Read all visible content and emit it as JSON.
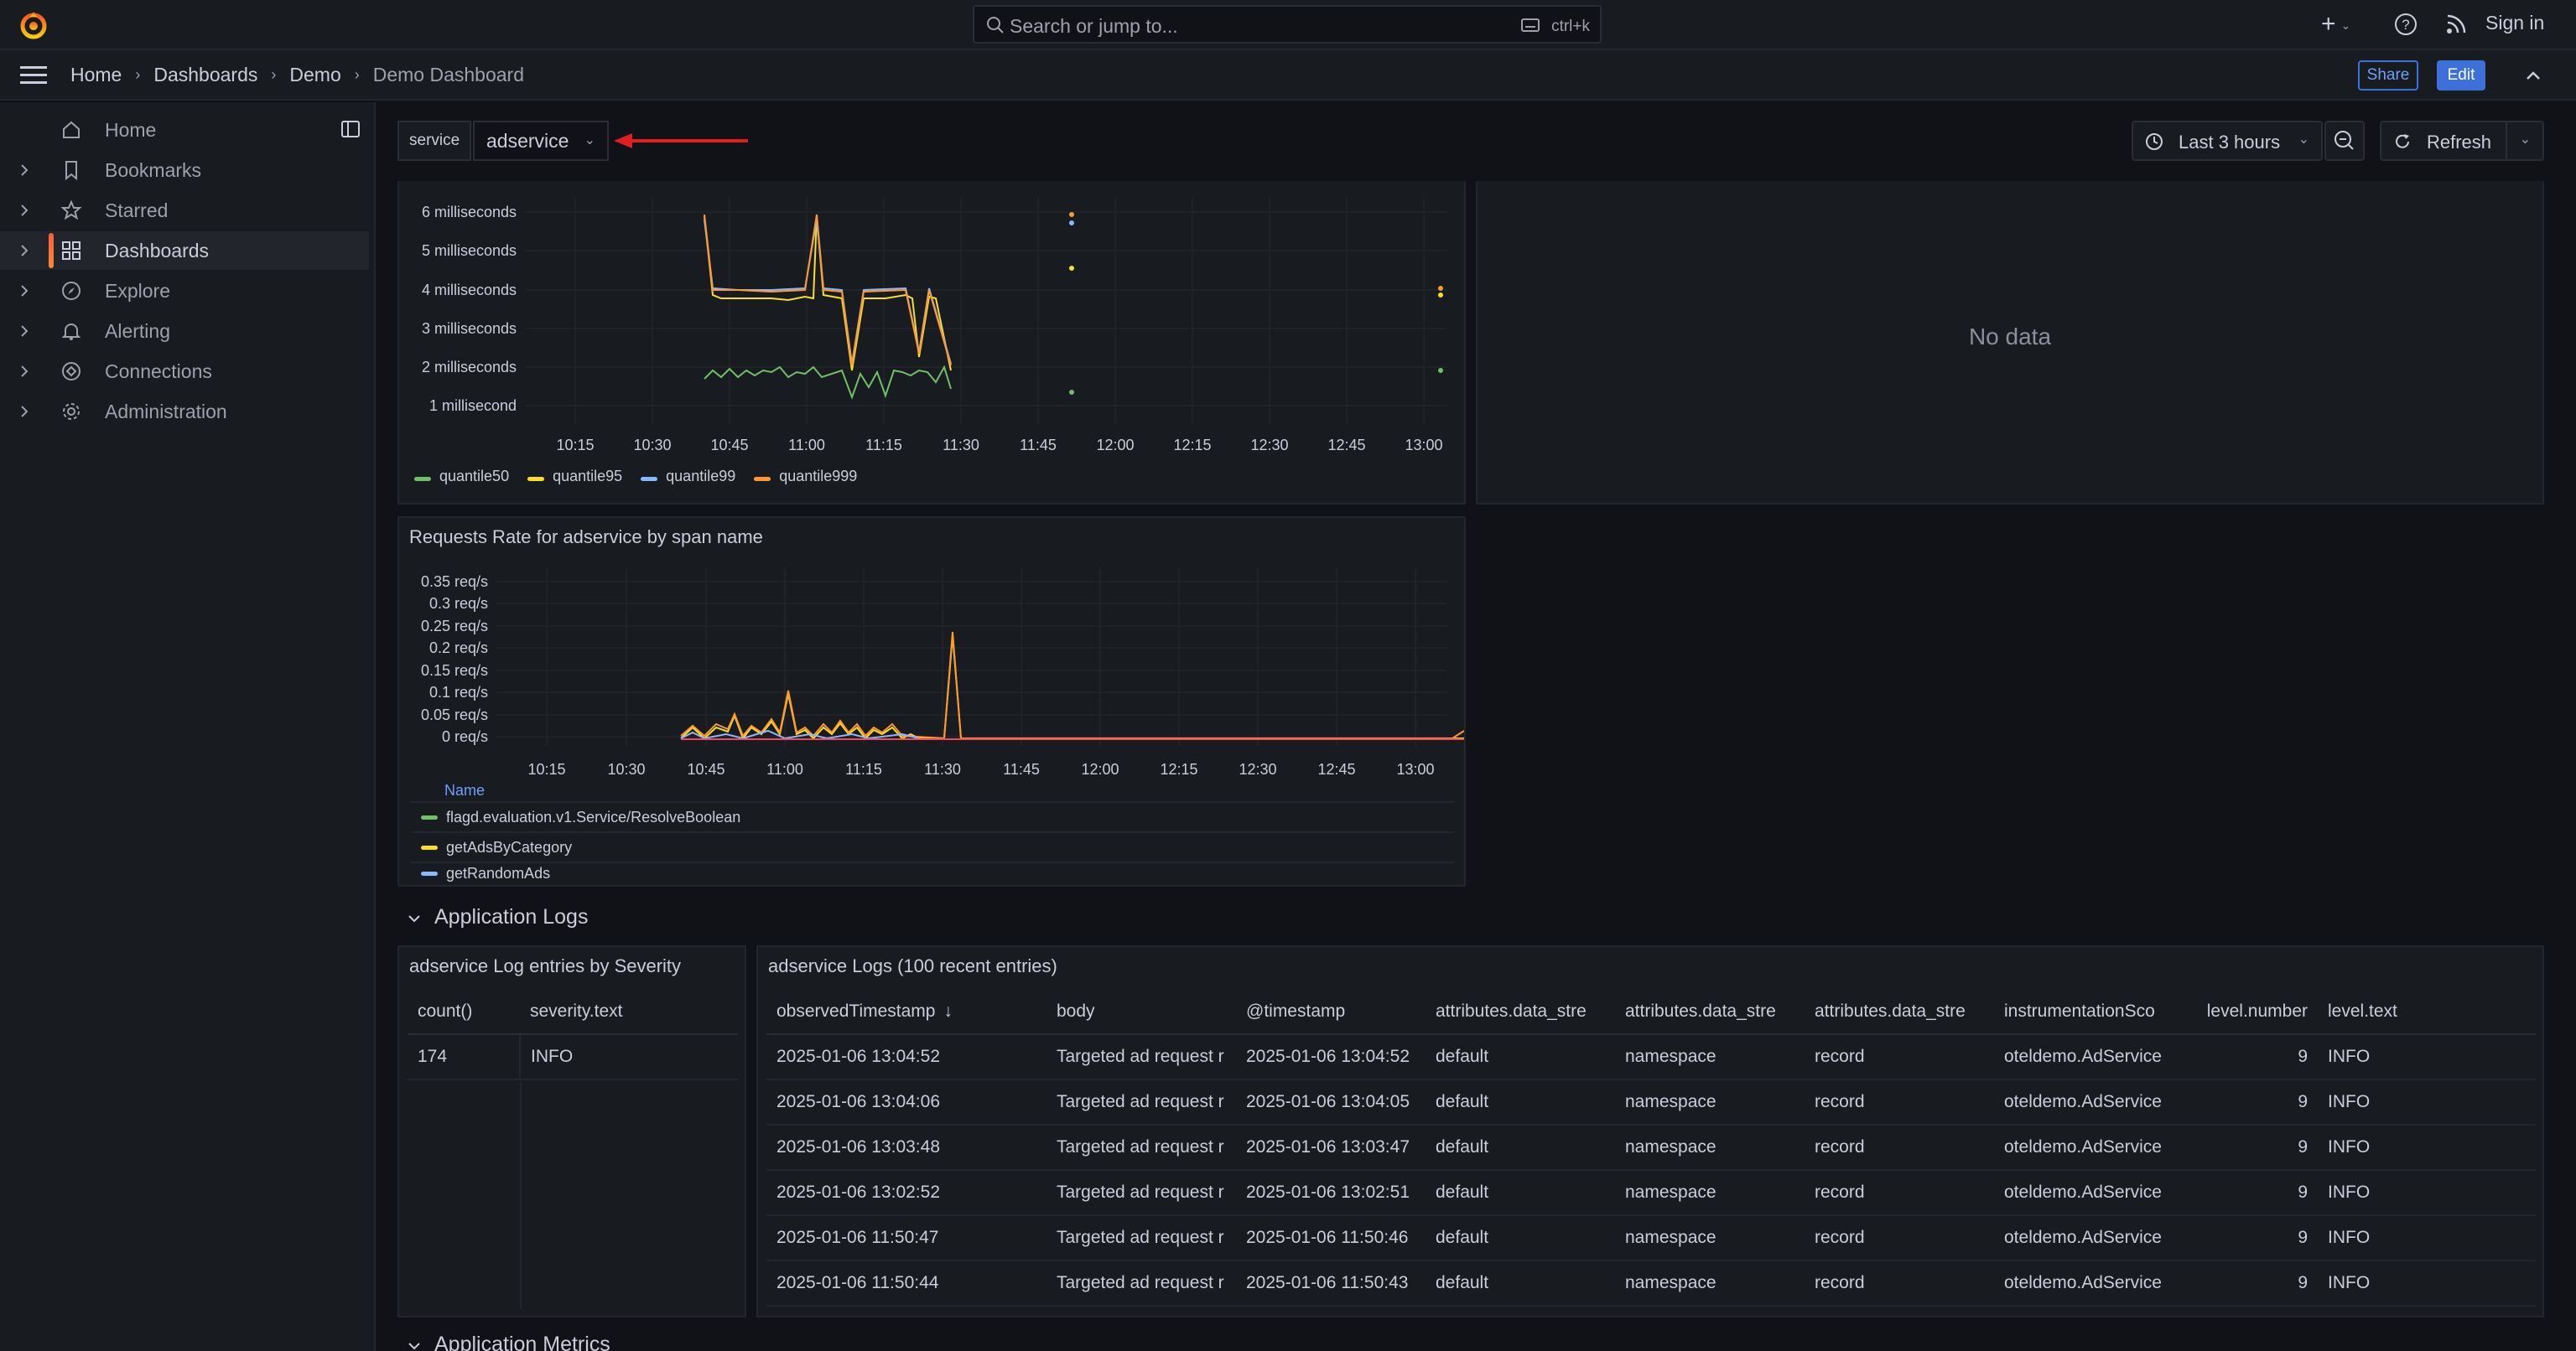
{
  "topbar": {
    "search_placeholder": "Search or jump to...",
    "search_shortcut": "ctrl+k",
    "plus_label": "+",
    "signin_label": "Sign in"
  },
  "breadcrumb": [
    "Home",
    "Dashboards",
    "Demo",
    "Demo Dashboard"
  ],
  "toolbar": {
    "share_label": "Share",
    "edit_label": "Edit"
  },
  "sidebar": {
    "items": [
      {
        "label": "Home",
        "icon": "home-icon",
        "expandable": false,
        "active": false
      },
      {
        "label": "Bookmarks",
        "icon": "bookmark-icon",
        "expandable": true,
        "active": false
      },
      {
        "label": "Starred",
        "icon": "star-icon",
        "expandable": true,
        "active": false
      },
      {
        "label": "Dashboards",
        "icon": "dashboards-grid-icon",
        "expandable": true,
        "active": true
      },
      {
        "label": "Explore",
        "icon": "compass-icon",
        "expandable": true,
        "active": false
      },
      {
        "label": "Alerting",
        "icon": "bell-icon",
        "expandable": true,
        "active": false
      },
      {
        "label": "Connections",
        "icon": "connections-icon",
        "expandable": true,
        "active": false
      },
      {
        "label": "Administration",
        "icon": "gear-icon",
        "expandable": true,
        "active": false
      }
    ]
  },
  "variables": {
    "service_label": "service",
    "service_value": "adservice"
  },
  "timepicker": {
    "range_label": "Last 3 hours",
    "refresh_label": "Refresh"
  },
  "colors": {
    "green": "#73bf69",
    "yellow": "#fade2a",
    "blue": "#8ab8ff",
    "orange": "#ff9830",
    "red": "#f2495c",
    "accent": "#3d71d9"
  },
  "panels": {
    "latency": {
      "y_ticks": [
        "6 milliseconds",
        "5 milliseconds",
        "4 milliseconds",
        "3 milliseconds",
        "2 milliseconds",
        "1 millisecond"
      ],
      "x_ticks": [
        "10:15",
        "10:30",
        "10:45",
        "11:00",
        "11:15",
        "11:30",
        "11:45",
        "12:00",
        "12:15",
        "12:30",
        "12:45",
        "13:00"
      ],
      "legend": [
        "quantile50",
        "quantile95",
        "quantile99",
        "quantile999"
      ]
    },
    "nodata": {
      "message": "No data"
    },
    "rate": {
      "title": "Requests Rate for adservice by span name",
      "y_ticks": [
        "0.35 req/s",
        "0.3 req/s",
        "0.25 req/s",
        "0.2 req/s",
        "0.15 req/s",
        "0.1 req/s",
        "0.05 req/s",
        "0 req/s"
      ],
      "x_ticks": [
        "10:15",
        "10:30",
        "10:45",
        "11:00",
        "11:15",
        "11:30",
        "11:45",
        "12:00",
        "12:15",
        "12:30",
        "12:45",
        "13:00"
      ],
      "legend_header": "Name",
      "legend": [
        "flagd.evaluation.v1.Service/ResolveBoolean",
        "getAdsByCategory",
        "getRandomAds"
      ]
    }
  },
  "rows": {
    "logs_title": "Application Logs",
    "metrics_title": "Application Metrics"
  },
  "severity_table": {
    "title": "adservice Log entries by Severity",
    "columns": [
      "count()",
      "severity.text"
    ],
    "rows": [
      [
        "174",
        "INFO"
      ]
    ]
  },
  "logs_table": {
    "title": "adservice Logs (100 recent entries)",
    "columns": [
      "observedTimestamp",
      "body",
      "@timestamp",
      "attributes.data_stre",
      "attributes.data_stre",
      "attributes.data_stre",
      "instrumentationSco",
      "level.number",
      "level.text"
    ],
    "rows": [
      [
        "2025-01-06 13:04:52",
        "Targeted ad request r",
        "2025-01-06 13:04:52",
        "default",
        "namespace",
        "record",
        "oteldemo.AdService",
        "9",
        "INFO"
      ],
      [
        "2025-01-06 13:04:06",
        "Targeted ad request r",
        "2025-01-06 13:04:05",
        "default",
        "namespace",
        "record",
        "oteldemo.AdService",
        "9",
        "INFO"
      ],
      [
        "2025-01-06 13:03:48",
        "Targeted ad request r",
        "2025-01-06 13:03:47",
        "default",
        "namespace",
        "record",
        "oteldemo.AdService",
        "9",
        "INFO"
      ],
      [
        "2025-01-06 13:02:52",
        "Targeted ad request r",
        "2025-01-06 13:02:51",
        "default",
        "namespace",
        "record",
        "oteldemo.AdService",
        "9",
        "INFO"
      ],
      [
        "2025-01-06 11:50:47",
        "Targeted ad request r",
        "2025-01-06 11:50:46",
        "default",
        "namespace",
        "record",
        "oteldemo.AdService",
        "9",
        "INFO"
      ],
      [
        "2025-01-06 11:50:44",
        "Targeted ad request r",
        "2025-01-06 11:50:43",
        "default",
        "namespace",
        "record",
        "oteldemo.AdService",
        "9",
        "INFO"
      ]
    ]
  }
}
